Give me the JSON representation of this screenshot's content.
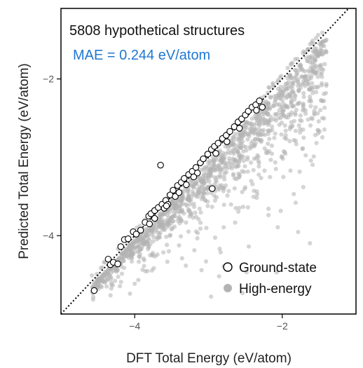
{
  "chart_data": {
    "type": "scatter",
    "title": "",
    "xlabel": "DFT Total Energy (eV/atom)",
    "ylabel": "Predicted Total Energy (eV/atom)",
    "xlim": [
      -5.0,
      -1.0
    ],
    "ylim": [
      -5.0,
      -1.1
    ],
    "x_ticks": [
      -4,
      -2
    ],
    "y_ticks": [
      -2,
      -4
    ],
    "x_tick_labels": [
      "−4",
      "−2"
    ],
    "y_tick_labels": [
      "−2",
      "−4"
    ],
    "grid": false,
    "legend": "bottom-right",
    "parity_line": true,
    "annotations": {
      "count": "5808 hypothetical structures",
      "mae": "MAE = 0.244 eV/atom"
    },
    "colors": {
      "mae_text": "#1f78d1",
      "high_energy": "#b3b3b3",
      "ground_state_edge": "#000000",
      "ground_state_fill": "#ffffff"
    },
    "series": [
      {
        "name": "Ground-state",
        "marker": "open-circle",
        "points": [
          [
            -4.55,
            -4.7
          ],
          [
            -4.36,
            -4.3
          ],
          [
            -4.33,
            -4.37
          ],
          [
            -4.29,
            -4.34
          ],
          [
            -4.23,
            -4.36
          ],
          [
            -4.19,
            -4.14
          ],
          [
            -4.14,
            -4.05
          ],
          [
            -4.09,
            -4.04
          ],
          [
            -4.02,
            -3.95
          ],
          [
            -3.98,
            -3.98
          ],
          [
            -3.92,
            -3.93
          ],
          [
            -3.86,
            -3.83
          ],
          [
            -3.81,
            -3.75
          ],
          [
            -3.78,
            -3.72
          ],
          [
            -3.73,
            -3.68
          ],
          [
            -3.68,
            -3.64
          ],
          [
            -3.63,
            -3.6
          ],
          [
            -3.58,
            -3.55
          ],
          [
            -3.52,
            -3.48
          ],
          [
            -3.48,
            -3.42
          ],
          [
            -3.42,
            -3.36
          ],
          [
            -3.37,
            -3.32
          ],
          [
            -3.33,
            -3.27
          ],
          [
            -3.27,
            -3.22
          ],
          [
            -3.22,
            -3.18
          ],
          [
            -3.17,
            -3.13
          ],
          [
            -3.11,
            -3.07
          ],
          [
            -3.07,
            -3.02
          ],
          [
            -3.01,
            -2.96
          ],
          [
            -2.96,
            -2.9
          ],
          [
            -2.92,
            -2.86
          ],
          [
            -2.87,
            -2.82
          ],
          [
            -2.81,
            -2.76
          ],
          [
            -2.76,
            -2.72
          ],
          [
            -2.71,
            -2.67
          ],
          [
            -2.65,
            -2.61
          ],
          [
            -2.6,
            -2.55
          ],
          [
            -2.55,
            -2.51
          ],
          [
            -2.5,
            -2.46
          ],
          [
            -2.46,
            -2.41
          ],
          [
            -2.41,
            -2.36
          ],
          [
            -2.36,
            -2.33
          ],
          [
            -2.31,
            -2.28
          ],
          [
            -2.27,
            -2.36
          ],
          [
            -2.35,
            -2.4
          ],
          [
            -3.6,
            -3.65
          ],
          [
            -3.73,
            -3.78
          ],
          [
            -3.45,
            -3.5
          ],
          [
            -3.55,
            -3.6
          ],
          [
            -3.3,
            -3.35
          ],
          [
            -3.15,
            -3.2
          ],
          [
            -2.9,
            -2.95
          ],
          [
            -2.75,
            -2.8
          ],
          [
            -2.58,
            -2.63
          ],
          [
            -3.65,
            -3.1
          ],
          [
            -3.57,
            -3.62
          ],
          [
            -3.4,
            -3.45
          ],
          [
            -3.2,
            -3.25
          ],
          [
            -2.95,
            -3.4
          ],
          [
            -3.8,
            -3.85
          ]
        ]
      },
      {
        "name": "High-energy",
        "marker": "filled-circle",
        "n_points": 5808,
        "x_range": [
          -4.6,
          -1.4
        ],
        "distribution": "band from parity line, predictions above DFT"
      }
    ]
  }
}
